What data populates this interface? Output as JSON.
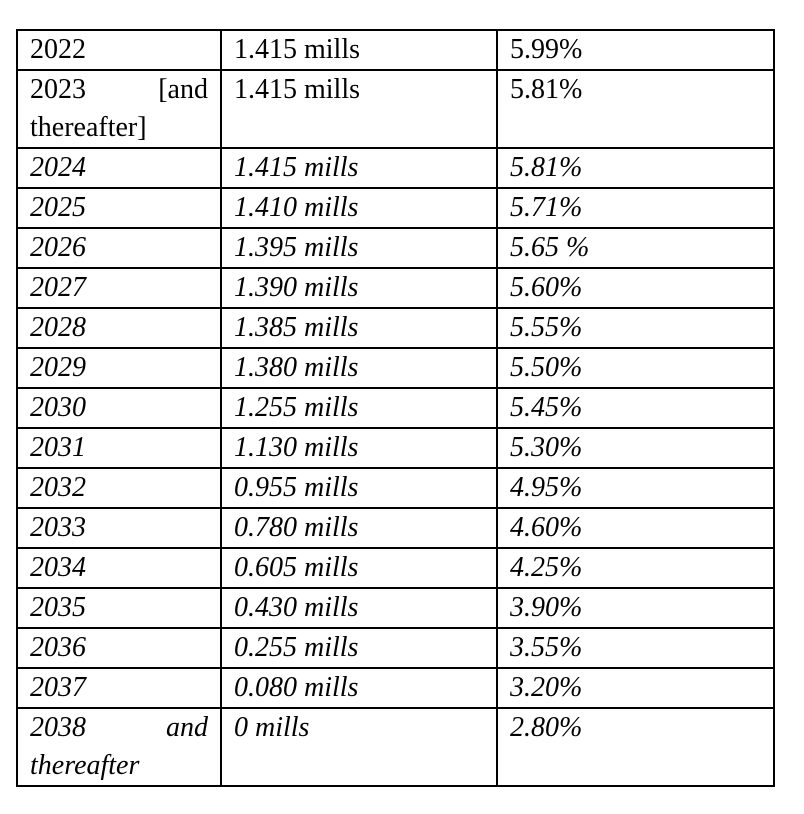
{
  "table": {
    "rows": [
      [
        "2022",
        "1.415 mills",
        "5.99%"
      ],
      [
        "2023 [and thereafter]",
        "1.415 mills",
        "5.81%"
      ],
      [
        "2024",
        "1.415 mills",
        "5.81%"
      ],
      [
        "2025",
        "1.410 mills",
        "5.71%"
      ],
      [
        "2026",
        "1.395 mills",
        "5.65 %"
      ],
      [
        "2027",
        "1.390 mills",
        "5.60%"
      ],
      [
        "2028",
        "1.385 mills",
        "5.55%"
      ],
      [
        "2029",
        "1.380 mills",
        "5.50%"
      ],
      [
        "2030",
        "1.255 mills",
        "5.45%"
      ],
      [
        "2031",
        "1.130 mills",
        "5.30%"
      ],
      [
        "2032",
        "0.955 mills",
        "4.95%"
      ],
      [
        "2033",
        "0.780 mills",
        "4.60%"
      ],
      [
        "2034",
        "0.605 mills",
        "4.25%"
      ],
      [
        "2035",
        "0.430 mills",
        "3.90%"
      ],
      [
        "2036",
        "0.255 mills",
        "3.55%"
      ],
      [
        "2037",
        "0.080 mills",
        "3.20%"
      ],
      [
        "2038 and thereafter",
        "0 mills",
        "2.80%"
      ]
    ]
  }
}
